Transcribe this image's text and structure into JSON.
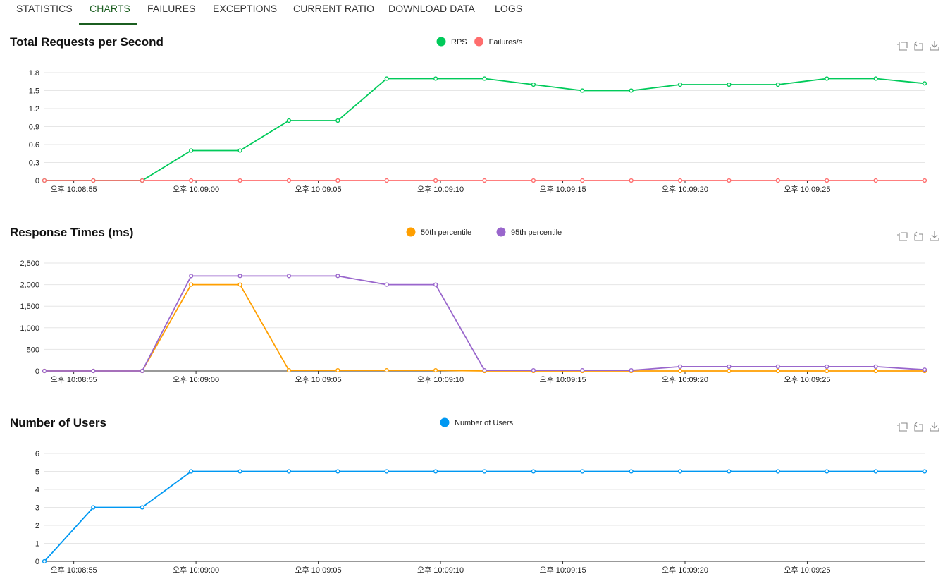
{
  "tabs": [
    {
      "label": "STATISTICS",
      "active": false
    },
    {
      "label": "CHARTS",
      "active": true
    },
    {
      "label": "FAILURES",
      "active": false
    },
    {
      "label": "EXCEPTIONS",
      "active": false
    },
    {
      "label": "CURRENT RATIO",
      "active": false
    },
    {
      "label": "DOWNLOAD DATA",
      "active": false
    },
    {
      "label": "LOGS",
      "active": false
    }
  ],
  "toolbox_icons": [
    "zoom-icon",
    "zoom-reset-icon",
    "download-icon"
  ],
  "x_tick_labels": [
    "오후 10:08:55",
    "오후 10:09:00",
    "오후 10:09:05",
    "오후 10:09:10",
    "오후 10:09:15",
    "오후 10:09:20",
    "오후 10:09:25"
  ],
  "chart_data": [
    {
      "type": "line",
      "title": "Total Requests per Second",
      "ylim": [
        0,
        1.8
      ],
      "yticks": [
        "0",
        "0.3",
        "0.6",
        "0.9",
        "1.2",
        "1.5",
        "1.8"
      ],
      "grid": true,
      "legend_position": "top-center",
      "series": [
        {
          "name": "RPS",
          "color": "#00ca5a",
          "values": [
            0,
            0,
            0,
            0.5,
            0.5,
            1.0,
            1.0,
            1.7,
            1.7,
            1.7,
            1.6,
            1.5,
            1.5,
            1.6,
            1.6,
            1.6,
            1.7,
            1.7,
            1.62
          ]
        },
        {
          "name": "Failures/s",
          "color": "#ff6d6d",
          "values": [
            0,
            0,
            0,
            0,
            0,
            0,
            0,
            0,
            0,
            0,
            0,
            0,
            0,
            0,
            0,
            0,
            0,
            0,
            0
          ]
        }
      ]
    },
    {
      "type": "line",
      "title": "Response Times (ms)",
      "ylim": [
        0,
        2500
      ],
      "yticks": [
        "0",
        "500",
        "1,000",
        "1,500",
        "2,000",
        "2,500"
      ],
      "grid": true,
      "legend_position": "top-center",
      "series": [
        {
          "name": "50th percentile",
          "color": "#ff9f00",
          "values": [
            0,
            0,
            0,
            2000,
            2000,
            15,
            15,
            15,
            15,
            0,
            0,
            0,
            0,
            0,
            0,
            0,
            0,
            0,
            0
          ]
        },
        {
          "name": "95th percentile",
          "color": "#9966cc",
          "values": [
            0,
            0,
            0,
            2200,
            2200,
            2200,
            2200,
            2000,
            2000,
            15,
            15,
            15,
            15,
            100,
            100,
            100,
            100,
            100,
            30
          ]
        }
      ]
    },
    {
      "type": "line",
      "title": "Number of Users",
      "ylim": [
        0,
        6
      ],
      "yticks": [
        "0",
        "1",
        "2",
        "3",
        "4",
        "5",
        "6"
      ],
      "grid": true,
      "legend_position": "top-center",
      "series": [
        {
          "name": "Number of Users",
          "color": "#0098f2",
          "values": [
            0,
            3,
            3,
            5,
            5,
            5,
            5,
            5,
            5,
            5,
            5,
            5,
            5,
            5,
            5,
            5,
            5,
            5,
            5
          ]
        }
      ]
    }
  ]
}
